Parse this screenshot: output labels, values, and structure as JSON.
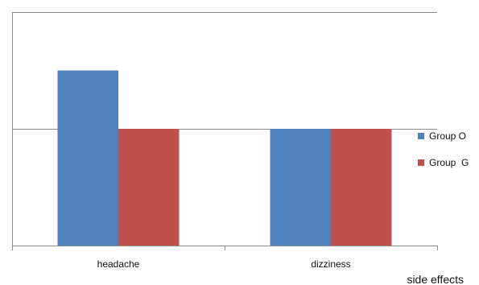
{
  "chart_data": {
    "type": "bar",
    "categories": [
      "headache",
      "dizziness"
    ],
    "series": [
      {
        "name": "Group O",
        "values": [
          1.5,
          1
        ],
        "color": "#4F81BD"
      },
      {
        "name": "Group  G",
        "values": [
          1,
          1
        ],
        "color": "#C0504D"
      }
    ],
    "title": "",
    "xlabel": "side effects",
    "ylabel": "",
    "ylim": [
      0,
      2
    ],
    "grid": true,
    "legend": "right"
  }
}
